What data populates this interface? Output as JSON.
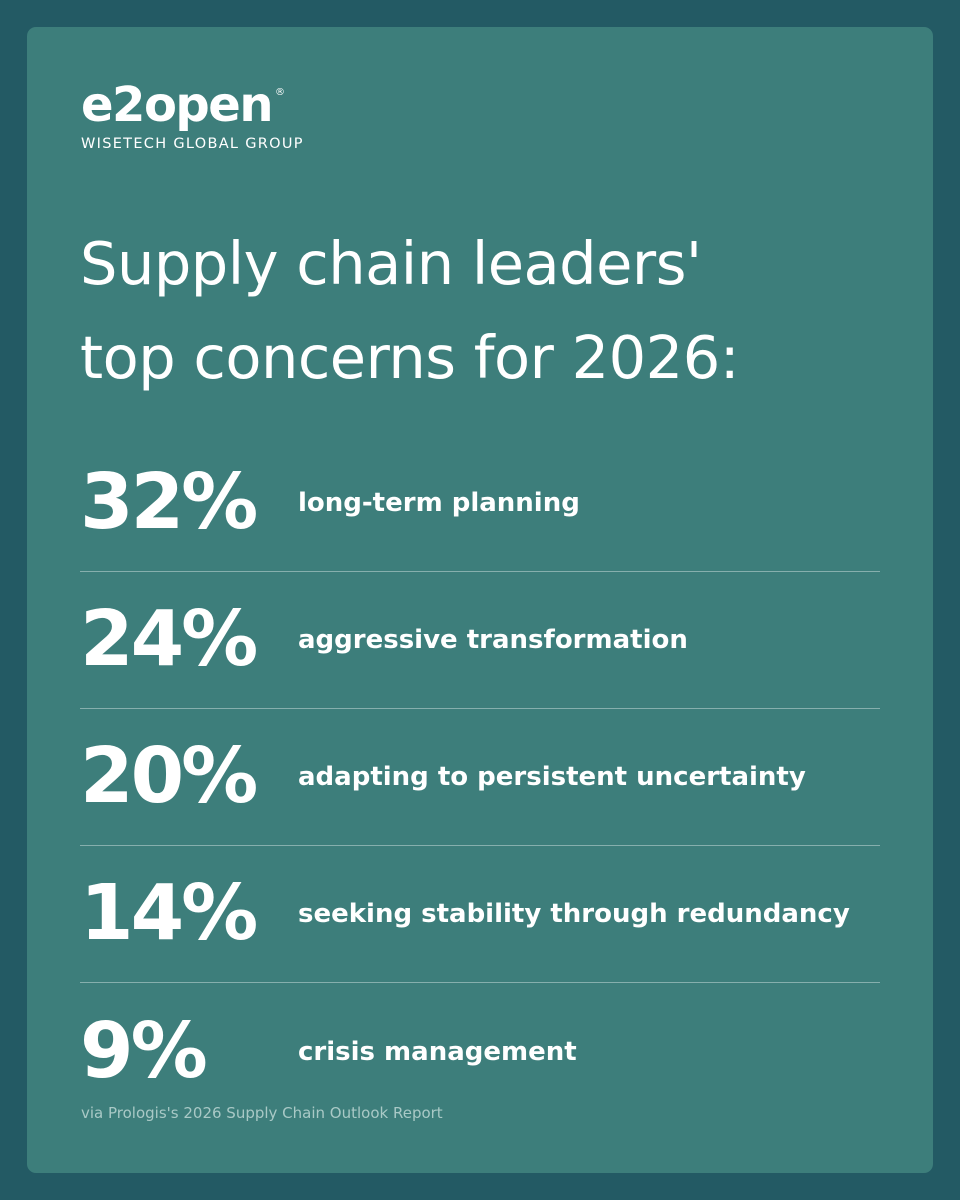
{
  "brand": {
    "name": "e2open",
    "registered_mark": "®",
    "tagline": "WISETECH GLOBAL GROUP"
  },
  "headline": {
    "line1": "Supply chain leaders'",
    "line2": "top concerns for 2026:"
  },
  "stats": [
    {
      "percent": "32%",
      "label": "long-term planning"
    },
    {
      "percent": "24%",
      "label": "aggressive transformation"
    },
    {
      "percent": "20%",
      "label": "adapting to persistent uncertainty"
    },
    {
      "percent": "14%",
      "label": "seeking stability through redundancy"
    },
    {
      "percent": "9%",
      "label": "crisis management"
    }
  ],
  "source": "via Prologis's 2026 Supply Chain Outlook Report",
  "colors": {
    "background": "#235a64",
    "card": "#3d7e7b",
    "text": "#ffffff",
    "source_text": "#a9c9c6"
  }
}
